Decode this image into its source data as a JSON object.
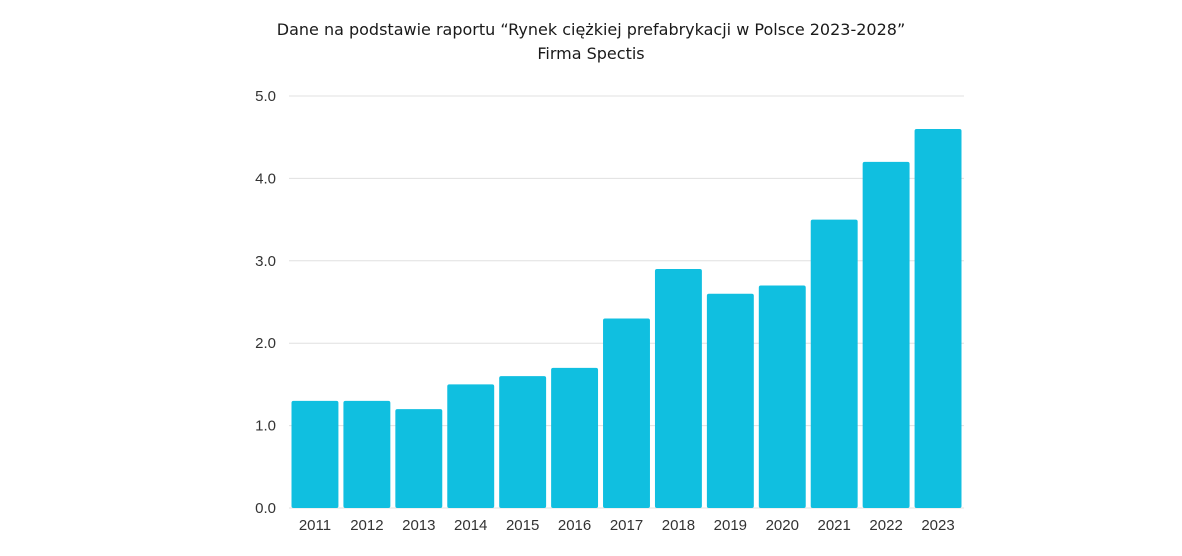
{
  "chart_data": {
    "type": "bar",
    "title": "Dane na podstawie raportu “Rynek ciężkiej prefabrykacji w Polsce 2023-2028”",
    "subtitle": "Firma Spectis",
    "categories": [
      "2011",
      "2012",
      "2013",
      "2014",
      "2015",
      "2016",
      "2017",
      "2018",
      "2019",
      "2020",
      "2021",
      "2022",
      "2023"
    ],
    "values": [
      1.3,
      1.3,
      1.2,
      1.5,
      1.6,
      1.7,
      2.3,
      2.9,
      2.6,
      2.7,
      3.5,
      4.2,
      4.6
    ],
    "ylim": [
      0,
      5
    ],
    "yticks": [
      "0.0",
      "1.0",
      "2.0",
      "3.0",
      "4.0",
      "5.0"
    ],
    "xlabel": "",
    "ylabel": "",
    "grid": true,
    "bar_color": "#10BFE0",
    "grid_color": "#E0E0E0"
  }
}
